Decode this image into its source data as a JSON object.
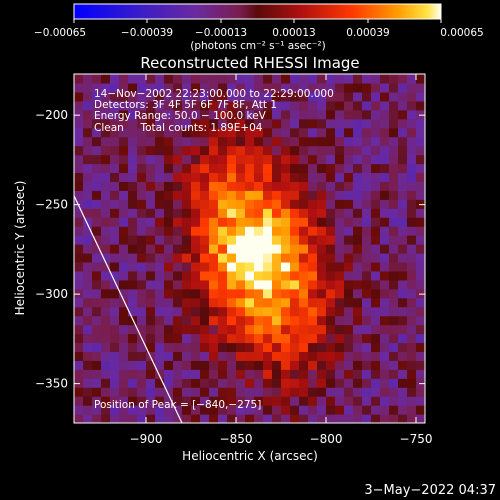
{
  "chart_data": {
    "type": "heatmap",
    "title": "Reconstructed RHESSI Image",
    "xlabel": "Heliocentric X (arcsec)",
    "ylabel": "Heliocentric Y (arcsec)",
    "xlim": [
      -940,
      -745
    ],
    "ylim": [
      -372,
      -177
    ],
    "x_ticks": [
      -900,
      -850,
      -800,
      -750
    ],
    "y_ticks": [
      -200,
      -250,
      -300,
      -350
    ],
    "x_tick_labels": [
      "−900",
      "−850",
      "−800",
      "−750"
    ],
    "y_tick_labels": [
      "−200",
      "−250",
      "−300",
      "−350"
    ],
    "colorbar": {
      "range": [
        -0.00065,
        0.00065
      ],
      "ticks": [
        -0.00065,
        -0.00039,
        -0.00013,
        0.00013,
        0.00039,
        0.00065
      ],
      "tick_labels": [
        "−0.00065",
        "−0.00039",
        "−0.00013",
        "0.00013",
        "0.00039",
        "0.00065"
      ],
      "unit_label": "(photons cm⁻² s⁻¹ asec⁻²)"
    },
    "annotations": [
      "14−Nov−2002 22:23:00.000 to 22:29:00.000",
      "Detectors: 3F 4F 5F 6F 7F 8F, Att 1",
      "Energy Range: 50.0 − 100.0 keV",
      "Clean     Total counts: 1.89E+04"
    ],
    "peak_label": "Position of Peak = [−840,−275]",
    "peak_position": [
      -840,
      -275
    ],
    "footer": "3−May−2022 04:37",
    "source": {
      "center": [
        -838,
        -280
      ],
      "sigma_x": 22,
      "sigma_y": 38,
      "tilt_deg": 18,
      "peak_value": 0.00065,
      "background_value": -0.00012
    },
    "limb_line": [
      [
        -940,
        -245
      ],
      [
        -880,
        -372
      ]
    ]
  }
}
